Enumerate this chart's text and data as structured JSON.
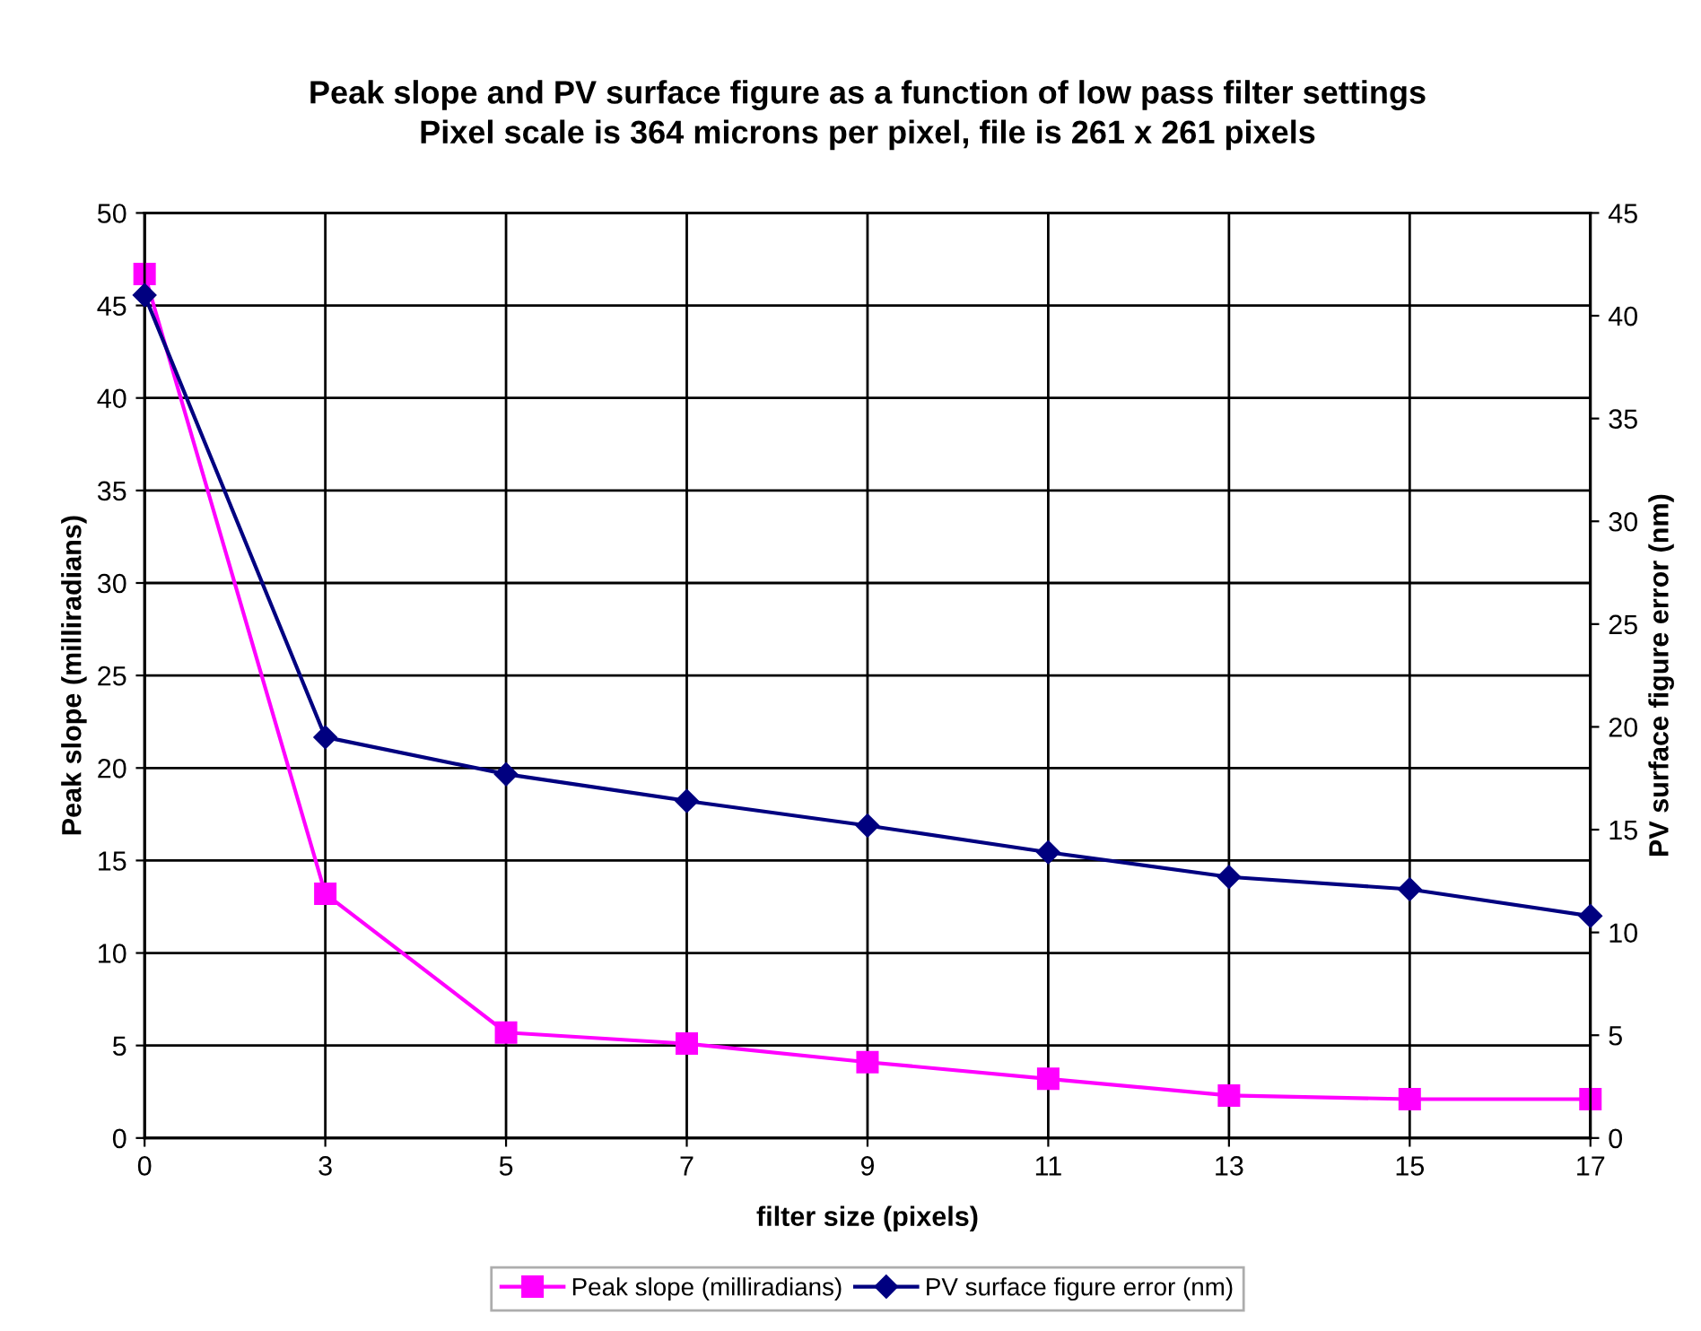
{
  "chart_data": {
    "type": "line",
    "title": "Peak slope and PV surface figure as a function of low pass filter settings\nPixel scale is 364 microns per pixel, file is 261 x 261 pixels",
    "xlabel": "filter size (pixels)",
    "ylabel": "Peak slope (milliradians)",
    "y2label": "PV surface figure error (nm)",
    "categories": [
      "0",
      "3",
      "5",
      "7",
      "9",
      "11",
      "13",
      "15",
      "17"
    ],
    "series": [
      {
        "name": "Peak slope (milliradians)",
        "color": "#ff00ff",
        "marker": "square",
        "values": [
          46.7,
          13.2,
          5.7,
          5.1,
          4.1,
          3.2,
          2.3,
          2.1,
          2.1
        ]
      },
      {
        "name": "PV surface figure error (nm)",
        "color": "#000080",
        "marker": "diamond",
        "axis": "y2",
        "values": [
          41.0,
          19.5,
          17.7,
          16.4,
          15.2,
          13.9,
          12.7,
          12.1,
          10.8
        ]
      }
    ],
    "ylim": [
      0,
      50
    ],
    "yticks": [
      0,
      5,
      10,
      15,
      20,
      25,
      30,
      35,
      40,
      45,
      50
    ],
    "y2lim": [
      0,
      45
    ],
    "y2ticks": [
      0,
      5,
      10,
      15,
      20,
      25,
      30,
      35,
      40,
      45
    ],
    "grid": true,
    "legend": "bottom",
    "line_style": "solid"
  }
}
